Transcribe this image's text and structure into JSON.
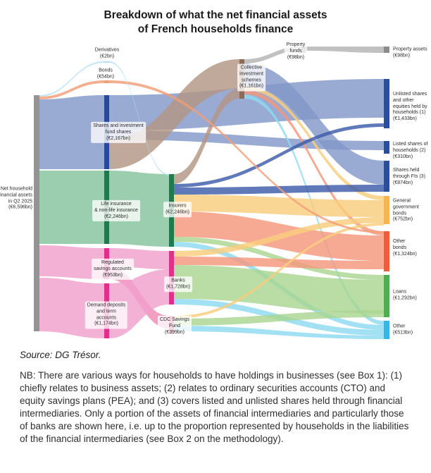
{
  "title": "Breakdown of what the net financial assets\nof French households finance",
  "source": "Source: DG Trésor.",
  "note": "NB: There are various ways for households to have holdings in businesses (see Box 1): (1) chiefly relates to business assets; (2) relates to ordinary securities accounts (CTO) and equity savings plans (PEA); and (3) covers listed and unlisted shares held through financial intermediaries. Only a portion of the assets of financial intermediaries and particularly those of banks are shown here, i.e. up to the proportion represented by households in the liabilities of the financial intermediaries (see Box 2 on the methodology).",
  "chart_data": {
    "type": "sankey",
    "unit": "EUR bn",
    "nodes": [
      {
        "id": "net",
        "label": "Net household\nfinancial assets\nin Q2 2025\n(€6,596bn)",
        "value": 6596,
        "color": "#949494"
      },
      {
        "id": "derivatives",
        "label": "Derivatives\n(€2bn)",
        "value": 2,
        "color": "#b5dff0"
      },
      {
        "id": "bonds",
        "label": "Bonds\n(€54bn)",
        "value": 54,
        "color": "#f29e78"
      },
      {
        "id": "shares",
        "label": "Shares and investment\nfund shares\n(€2,167bn)",
        "value": 2167,
        "color": "#27489c"
      },
      {
        "id": "life",
        "label": "Life insurance\n& non-life insurance\n(€2,246bn)",
        "value": 2246,
        "color": "#1f7a4d"
      },
      {
        "id": "regulated",
        "label": "Regulated\nsavings accounts\n(€953bn)",
        "value": 953,
        "color": "#e0308d"
      },
      {
        "id": "demand",
        "label": "Demand deposits\nand term\naccounts\n(€1,174bn)",
        "value": 1174,
        "color": "#e0308d"
      },
      {
        "id": "insurers",
        "label": "Insurers\n(€2,246bn)",
        "value": 2246,
        "color": "#1f7a4d"
      },
      {
        "id": "banks",
        "label": "Banks\n(€1,728bn)",
        "value": 1728,
        "color": "#e0308d"
      },
      {
        "id": "cdc",
        "label": "CDC Savings\nFund\n(€399bn)",
        "value": 399,
        "color": "#e0457b"
      },
      {
        "id": "cis",
        "label": "Collective\ninvestment\nschemes\n(€1,161bn)",
        "value": 1161,
        "color": "#8a6b58"
      },
      {
        "id": "pfunds",
        "label": "Property\nfunds\n(€98bn)",
        "value": 98,
        "color": "#8c8c8c"
      },
      {
        "id": "passets",
        "label": "Property assets\n(€98bn)",
        "value": 98,
        "color": "#8c8c8c"
      },
      {
        "id": "unlisted",
        "label": "Unlisted shares\nand other\nequities held by\nhouseholds (1)\n(€1,433bn)",
        "value": 1433,
        "color": "#2a4d9c"
      },
      {
        "id": "listed",
        "label": "Listed shares of\nhouseholds (2)\n(€310bn)",
        "value": 310,
        "color": "#2a4d9c"
      },
      {
        "id": "sharesfis",
        "label": "Shares held\nthrough FIs (3)\n(€874bn)",
        "value": 874,
        "color": "#2a4d9c"
      },
      {
        "id": "govbonds",
        "label": "General\ngovernment\nbonds\n(€752bn)",
        "value": 752,
        "color": "#f7b44f"
      },
      {
        "id": "otherbonds",
        "label": "Other\nbonds\n(€1,324bn)",
        "value": 1324,
        "color": "#f05c3c"
      },
      {
        "id": "loans",
        "label": "Loans\n(€1,292bn)",
        "value": 1292,
        "color": "#4caf50"
      },
      {
        "id": "other",
        "label": "Other\n(€513bn)",
        "value": 513,
        "color": "#35b8e8"
      }
    ],
    "links": [
      {
        "source": "net",
        "target": "derivatives",
        "color": "#b5dff0"
      },
      {
        "source": "net",
        "target": "bonds",
        "color": "#f29e78"
      },
      {
        "source": "net",
        "target": "shares",
        "color": "#8397c9"
      },
      {
        "source": "net",
        "target": "life",
        "color": "#85c39c"
      },
      {
        "source": "net",
        "target": "regulated",
        "color": "#f0a0cd"
      },
      {
        "source": "net",
        "target": "demand",
        "color": "#f0a0cd"
      },
      {
        "source": "shares",
        "target": "unlisted",
        "color": "#8397c9"
      },
      {
        "source": "shares",
        "target": "listed",
        "color": "#8397c9"
      },
      {
        "source": "shares",
        "target": "cis",
        "color": "#b29684"
      },
      {
        "source": "insurers",
        "target": "cis",
        "color": "#b29684"
      },
      {
        "source": "cis",
        "target": "pfunds",
        "color": "#b3b3b3"
      },
      {
        "source": "pfunds",
        "target": "passets",
        "color": "#b3b3b3"
      },
      {
        "source": "cis",
        "target": "sharesfis",
        "color": "#8397c9"
      },
      {
        "source": "cis",
        "target": "govbonds",
        "color": "#f9cd7e"
      },
      {
        "source": "cis",
        "target": "otherbonds",
        "color": "#f4977d"
      },
      {
        "source": "cis",
        "target": "other",
        "color": "#8ed9f2"
      },
      {
        "source": "insurers",
        "target": "unlisted",
        "color": "#3d5ca8"
      },
      {
        "source": "insurers",
        "target": "sharesfis",
        "color": "#3d5ca8"
      },
      {
        "source": "insurers",
        "target": "govbonds",
        "color": "#f9cd7e"
      },
      {
        "source": "insurers",
        "target": "otherbonds",
        "color": "#f4977d"
      },
      {
        "source": "insurers",
        "target": "loans",
        "color": "#a9d590"
      },
      {
        "source": "insurers",
        "target": "other",
        "color": "#8ed9f2"
      },
      {
        "source": "life",
        "target": "insurers",
        "color": "#85c39c"
      },
      {
        "source": "regulated",
        "target": "banks",
        "color": "#f0a0cd"
      },
      {
        "source": "regulated",
        "target": "cdc",
        "color": "#ee8bb5"
      },
      {
        "source": "demand",
        "target": "banks",
        "color": "#f0a0cd"
      },
      {
        "source": "banks",
        "target": "govbonds",
        "color": "#f9cd7e"
      },
      {
        "source": "banks",
        "target": "otherbonds",
        "color": "#f4977d"
      },
      {
        "source": "banks",
        "target": "loans",
        "color": "#a9d590"
      },
      {
        "source": "banks",
        "target": "other",
        "color": "#8ed9f2"
      },
      {
        "source": "cdc",
        "target": "govbonds",
        "color": "#f9cd7e"
      },
      {
        "source": "cdc",
        "target": "loans",
        "color": "#a9d590"
      },
      {
        "source": "cdc",
        "target": "other",
        "color": "#8ed9f2"
      },
      {
        "source": "bonds",
        "target": "otherbonds",
        "color": "#f29e78"
      },
      {
        "source": "derivatives",
        "target": "insurers",
        "color": "#b5dff0"
      }
    ]
  }
}
